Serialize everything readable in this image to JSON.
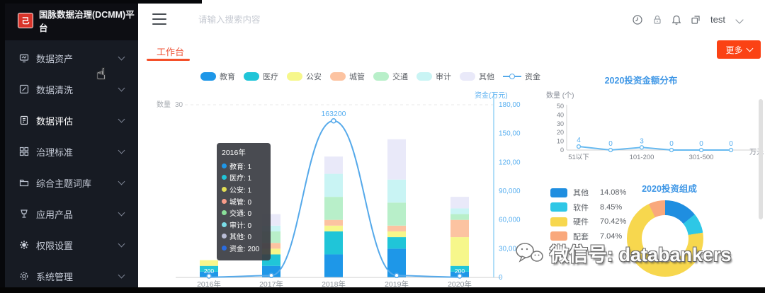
{
  "app": {
    "logo_title": "国脉数据治理(DCMM)平台"
  },
  "sidebar": {
    "items": [
      {
        "label": "数据资产",
        "icon": "monitor-icon"
      },
      {
        "label": "数据清洗",
        "icon": "edit-icon"
      },
      {
        "label": "数据评估",
        "icon": "document-icon"
      },
      {
        "label": "治理标准",
        "icon": "grid-icon"
      },
      {
        "label": "综合主题词库",
        "icon": "folder-icon"
      },
      {
        "label": "应用产品",
        "icon": "product-icon"
      },
      {
        "label": "权限设置",
        "icon": "gear-icon"
      },
      {
        "label": "系统管理",
        "icon": "settings-icon"
      }
    ]
  },
  "header": {
    "search_placeholder": "请输入搜索内容",
    "icons": [
      "clock-icon",
      "lock-icon",
      "bell-icon",
      "fullscreen-icon"
    ],
    "user": "test"
  },
  "tabs": {
    "workbench": "工作台"
  },
  "more_button": {
    "label": "更多"
  },
  "watermark": {
    "text": "微信号: databankers"
  },
  "chart_data": [
    {
      "type": "bar",
      "subtype": "stacked-bar-with-line",
      "categories": [
        "2016年",
        "2017年",
        "2018年",
        "2019年",
        "2020年"
      ],
      "series": [
        {
          "name": "教育",
          "type": "bar",
          "color": "#1e97e8",
          "values": [
            1,
            2,
            4,
            5,
            1
          ]
        },
        {
          "name": "医疗",
          "type": "bar",
          "color": "#20c5d8",
          "values": [
            1,
            2,
            4,
            2,
            1
          ]
        },
        {
          "name": "公安",
          "type": "bar",
          "color": "#f6f78b",
          "values": [
            1,
            1,
            1,
            1,
            5
          ]
        },
        {
          "name": "城管",
          "type": "bar",
          "color": "#fcc3a1",
          "values": [
            0,
            1,
            1,
            1,
            3
          ]
        },
        {
          "name": "交通",
          "type": "bar",
          "color": "#b8efc9",
          "values": [
            0,
            2,
            4,
            4,
            1
          ]
        },
        {
          "name": "审计",
          "type": "bar",
          "color": "#c9f4f4",
          "values": [
            0,
            1,
            4,
            4,
            1
          ]
        },
        {
          "name": "其他",
          "type": "bar",
          "color": "#e9e9f9",
          "values": [
            0,
            2,
            3,
            7,
            2
          ]
        },
        {
          "name": "资金",
          "type": "line",
          "color": "#55a9ea",
          "values": [
            200,
            2000,
            163200,
            2000,
            200
          ],
          "point_labels": [
            "200",
            "",
            "163200",
            "",
            "200"
          ]
        }
      ],
      "left_axis": {
        "name": "数量",
        "max_tick": "30",
        "max": 30
      },
      "right_axis": {
        "name": "资金(万元)",
        "max": 180000,
        "ticks": [
          "180,000",
          "150,000",
          "120,000",
          "90,000",
          "60,000",
          "30,000",
          "0"
        ]
      },
      "tooltip": {
        "title": "2016年",
        "rows": [
          {
            "name": "教育",
            "value": "1",
            "color": "#1e97e8"
          },
          {
            "name": "医疗",
            "value": "1",
            "color": "#20c5d8"
          },
          {
            "name": "公安",
            "value": "1",
            "color": "#e3df55"
          },
          {
            "name": "城管",
            "value": "0",
            "color": "#fa9d8a"
          },
          {
            "name": "交通",
            "value": "0",
            "color": "#8ae09a"
          },
          {
            "name": "审计",
            "value": "0",
            "color": "#7adee8"
          },
          {
            "name": "其他",
            "value": "0",
            "color": "#b9bdd6"
          },
          {
            "name": "资金",
            "value": "200",
            "color": "#2a6ce0"
          }
        ]
      }
    },
    {
      "type": "line",
      "title": "2020投资金额分布",
      "ylabel": "数量 (个)",
      "xunit": "万元",
      "yticks": [
        0,
        10,
        20,
        30,
        40,
        50
      ],
      "ylim": [
        0,
        50
      ],
      "categories": [
        "51以下",
        "",
        "101-200",
        "",
        "301-500",
        ""
      ],
      "values": [
        4,
        0,
        3,
        0,
        0,
        0
      ],
      "color": "#66b9f0"
    },
    {
      "type": "pie",
      "title": "2020投资组成",
      "slices": [
        {
          "name": "其他",
          "pct": 14.08,
          "label": "14.08%",
          "color": "#1f8ee0"
        },
        {
          "name": "软件",
          "pct": 8.45,
          "label": "8.45%",
          "color": "#2ec7e6"
        },
        {
          "name": "硬件",
          "pct": 70.42,
          "label": "70.42%",
          "color": "#f7d74e"
        },
        {
          "name": "配套",
          "pct": 7.04,
          "label": "7.04%",
          "color": "#f9a87c"
        }
      ]
    }
  ]
}
